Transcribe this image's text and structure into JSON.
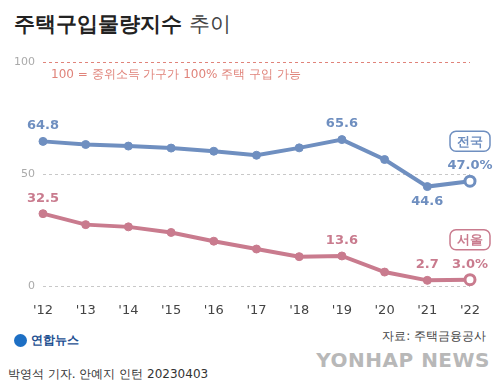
{
  "chart_data": {
    "type": "line",
    "title": "주택구입물량지수 추이",
    "annotation": "100 = 중위소득 가구가 100% 주택 구입 가능",
    "source": "자료: 주택금융공사",
    "credit": "박영석 기자. 안예지 인턴 20230403",
    "logo": "연합뉴스",
    "watermark": "YONHAP NEWS",
    "categories": [
      "'12",
      "'13",
      "'14",
      "'15",
      "'16",
      "'17",
      "'18",
      "'19",
      "'20",
      "'21",
      "'22"
    ],
    "series": [
      {
        "name": "전국",
        "color": "#6f8fc0",
        "values": [
          64.8,
          63.4,
          62.7,
          61.8,
          60.4,
          58.6,
          61.9,
          65.6,
          56.7,
          44.6,
          47.0
        ],
        "value_labels": [
          "64.8",
          null,
          null,
          null,
          null,
          null,
          null,
          "65.6",
          null,
          "44.6",
          "47.0%"
        ]
      },
      {
        "name": "서울",
        "color": "#c97b8e",
        "values": [
          32.5,
          27.6,
          26.6,
          24.1,
          20.2,
          16.7,
          13.3,
          13.6,
          6.4,
          2.7,
          3.0
        ],
        "value_labels": [
          "32.5",
          null,
          null,
          null,
          null,
          null,
          null,
          "13.6",
          null,
          "2.7",
          "3.0%"
        ]
      }
    ],
    "ylim": [
      0,
      100
    ],
    "yticks": [
      0,
      50,
      100
    ],
    "grid": true,
    "data_labels": true,
    "marker": "circle",
    "line_style": "solid"
  }
}
